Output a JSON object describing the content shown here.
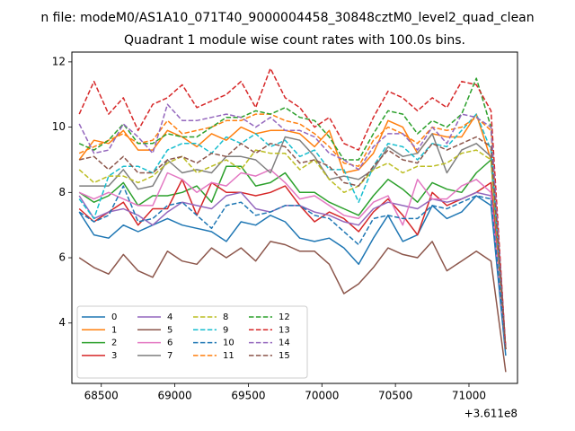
{
  "figure": {
    "suptitle": "n file: modeM0/AS1A10_071T40_9000004458_30848cztM0_level2_quad_clean",
    "title": "Quadrant 1 module wise count rates with 100.0s bins.",
    "offset_text": "+3.611e8"
  },
  "chart_data": {
    "type": "line",
    "title": "Quadrant 1 module wise count rates with 100.0s bins.",
    "xlabel": "",
    "ylabel": "",
    "x_offset": 361100000,
    "xlim": [
      68300,
      71330
    ],
    "ylim": [
      2.15,
      12.3
    ],
    "xticks": [
      68500,
      69000,
      69500,
      70000,
      70500,
      71000
    ],
    "yticks": [
      4,
      6,
      8,
      10,
      12
    ],
    "grid": false,
    "legend_position": "lower-left",
    "legend_columns": 4,
    "x": [
      68350,
      68450,
      68550,
      68650,
      68750,
      68850,
      68950,
      69050,
      69150,
      69250,
      69350,
      69450,
      69550,
      69650,
      69750,
      69850,
      69950,
      70050,
      70150,
      70250,
      70350,
      70450,
      70550,
      70650,
      70750,
      70850,
      70950,
      71050,
      71150,
      71250
    ],
    "series": [
      {
        "name": "0",
        "color": "#1f77b4",
        "dash": "solid",
        "values": [
          7.4,
          6.7,
          6.6,
          7.0,
          6.8,
          7.0,
          7.2,
          7.0,
          6.9,
          6.8,
          6.5,
          7.1,
          7.0,
          7.3,
          7.1,
          6.6,
          6.5,
          6.6,
          6.3,
          5.8,
          6.6,
          7.3,
          6.5,
          6.7,
          7.6,
          7.2,
          7.4,
          7.9,
          7.6,
          3.0
        ]
      },
      {
        "name": "1",
        "color": "#ff7f0e",
        "dash": "solid",
        "values": [
          9.0,
          9.6,
          9.5,
          9.9,
          9.3,
          9.3,
          9.9,
          9.7,
          9.4,
          9.8,
          9.6,
          10.0,
          9.8,
          9.9,
          9.9,
          9.8,
          9.4,
          9.9,
          8.6,
          8.7,
          9.2,
          10.2,
          10.0,
          9.2,
          9.8,
          9.7,
          9.7,
          10.4,
          9.0,
          3.2
        ]
      },
      {
        "name": "2",
        "color": "#2ca02c",
        "dash": "solid",
        "values": [
          8.0,
          7.7,
          7.9,
          8.3,
          7.6,
          7.9,
          7.9,
          8.0,
          8.2,
          7.7,
          8.8,
          8.8,
          8.2,
          8.3,
          8.6,
          8.0,
          8.0,
          7.7,
          7.5,
          7.3,
          7.9,
          8.4,
          8.1,
          7.7,
          8.3,
          8.1,
          8.0,
          8.6,
          9.0,
          3.2
        ]
      },
      {
        "name": "3",
        "color": "#d62728",
        "dash": "solid",
        "values": [
          7.5,
          7.1,
          7.4,
          7.7,
          7.0,
          7.5,
          7.5,
          8.4,
          7.3,
          8.3,
          8.0,
          8.0,
          7.9,
          8.0,
          8.2,
          7.6,
          7.1,
          7.4,
          7.2,
          6.8,
          7.4,
          7.8,
          7.3,
          6.7,
          8.0,
          7.6,
          7.8,
          8.0,
          8.3,
          3.2
        ]
      },
      {
        "name": "4",
        "color": "#9467bd",
        "dash": "solid",
        "values": [
          7.9,
          7.2,
          7.4,
          7.5,
          7.3,
          7.0,
          7.4,
          7.7,
          7.6,
          7.5,
          7.9,
          8.0,
          7.5,
          7.4,
          7.6,
          7.6,
          7.4,
          7.3,
          7.1,
          7.0,
          7.5,
          7.7,
          7.6,
          7.5,
          7.8,
          7.7,
          7.8,
          8.0,
          7.9,
          3.2
        ]
      },
      {
        "name": "5",
        "color": "#8c564b",
        "dash": "solid",
        "values": [
          6.0,
          5.7,
          5.5,
          6.1,
          5.6,
          5.4,
          6.2,
          5.9,
          5.8,
          6.3,
          6.0,
          6.3,
          5.9,
          6.5,
          6.4,
          6.2,
          6.2,
          5.8,
          4.9,
          5.2,
          5.7,
          6.3,
          6.1,
          6.0,
          6.5,
          5.6,
          5.9,
          6.2,
          5.9,
          2.5
        ]
      },
      {
        "name": "6",
        "color": "#e377c2",
        "dash": "solid",
        "values": [
          8.0,
          7.8,
          8.0,
          7.8,
          7.6,
          7.6,
          8.6,
          8.4,
          8.0,
          8.3,
          8.2,
          8.6,
          8.5,
          8.7,
          8.3,
          7.8,
          7.9,
          7.6,
          7.3,
          7.2,
          7.7,
          7.9,
          7.0,
          8.4,
          7.8,
          7.8,
          8.2,
          8.4,
          8.0,
          3.2
        ]
      },
      {
        "name": "7",
        "color": "#7f7f7f",
        "dash": "solid",
        "values": [
          8.2,
          8.2,
          8.2,
          8.7,
          8.1,
          8.2,
          9.0,
          8.6,
          8.7,
          8.6,
          9.1,
          9.1,
          9.0,
          8.6,
          9.7,
          9.6,
          9.1,
          8.4,
          8.5,
          8.4,
          8.7,
          9.4,
          9.1,
          9.2,
          9.8,
          8.6,
          9.3,
          9.5,
          9.1,
          3.2
        ]
      },
      {
        "name": "8",
        "color": "#bcbd22",
        "dash": "dashed",
        "values": [
          8.7,
          8.3,
          8.5,
          8.5,
          8.3,
          8.5,
          8.9,
          9.1,
          8.6,
          8.8,
          9.0,
          8.7,
          9.3,
          9.2,
          9.2,
          8.7,
          9.0,
          8.4,
          8.0,
          8.2,
          8.7,
          8.9,
          8.6,
          8.8,
          8.8,
          8.9,
          9.2,
          9.3,
          9.0,
          3.2
        ]
      },
      {
        "name": "9",
        "color": "#17becf",
        "dash": "dashed",
        "values": [
          7.8,
          7.2,
          8.5,
          8.8,
          8.8,
          8.6,
          9.3,
          9.5,
          9.5,
          9.2,
          9.7,
          9.5,
          9.8,
          9.4,
          9.6,
          9.1,
          9.3,
          8.7,
          8.7,
          7.7,
          8.8,
          9.5,
          9.4,
          9.0,
          9.5,
          9.4,
          9.9,
          10.4,
          9.3,
          3.2
        ]
      },
      {
        "name": "10",
        "color": "#1f77b4",
        "dash": "dashed",
        "values": [
          7.4,
          7.1,
          7.3,
          8.2,
          7.1,
          7.2,
          7.6,
          7.7,
          7.3,
          6.9,
          7.6,
          7.7,
          7.3,
          7.4,
          7.6,
          7.6,
          7.3,
          7.2,
          6.8,
          6.4,
          7.2,
          7.3,
          7.2,
          7.2,
          7.6,
          7.5,
          7.7,
          7.9,
          7.8,
          3.2
        ]
      },
      {
        "name": "11",
        "color": "#ff7f0e",
        "dash": "dashed",
        "values": [
          9.2,
          9.4,
          9.6,
          9.8,
          9.5,
          9.6,
          10.2,
          9.8,
          9.9,
          10.0,
          10.2,
          10.2,
          10.4,
          10.4,
          10.2,
          10.1,
          9.8,
          9.4,
          8.9,
          8.8,
          9.6,
          10.0,
          9.8,
          9.5,
          10.0,
          9.9,
          10.0,
          10.3,
          9.9,
          3.2
        ]
      },
      {
        "name": "12",
        "color": "#2ca02c",
        "dash": "dashed",
        "values": [
          9.5,
          9.3,
          9.6,
          10.1,
          9.5,
          9.5,
          9.8,
          9.7,
          9.7,
          10.0,
          10.3,
          10.3,
          10.5,
          10.4,
          10.6,
          10.3,
          10.2,
          9.7,
          9.0,
          9.0,
          9.8,
          10.5,
          10.4,
          9.8,
          10.2,
          10.0,
          10.4,
          11.5,
          10.0,
          3.2
        ]
      },
      {
        "name": "13",
        "color": "#d62728",
        "dash": "dashed",
        "values": [
          10.4,
          11.4,
          10.4,
          10.9,
          9.9,
          10.7,
          10.9,
          11.3,
          10.6,
          10.8,
          11.0,
          11.4,
          10.6,
          11.8,
          10.9,
          10.6,
          10.0,
          10.3,
          9.5,
          9.3,
          10.3,
          11.1,
          10.9,
          10.5,
          10.9,
          10.6,
          11.4,
          11.3,
          10.5,
          3.2
        ]
      },
      {
        "name": "14",
        "color": "#9467bd",
        "dash": "dashed",
        "values": [
          10.1,
          9.2,
          9.3,
          10.1,
          9.7,
          9.2,
          10.7,
          10.2,
          10.2,
          10.3,
          10.4,
          10.3,
          10.0,
          10.3,
          9.9,
          9.9,
          9.7,
          9.2,
          9.0,
          8.7,
          9.4,
          9.8,
          9.8,
          9.3,
          10.0,
          9.5,
          10.4,
          10.3,
          10.0,
          3.2
        ]
      },
      {
        "name": "15",
        "color": "#8c564b",
        "dash": "dashed",
        "values": [
          9.0,
          9.1,
          8.7,
          9.1,
          8.6,
          8.6,
          9.0,
          9.1,
          8.9,
          9.2,
          9.1,
          9.5,
          9.2,
          9.5,
          9.4,
          8.9,
          9.0,
          8.8,
          8.3,
          8.2,
          8.8,
          9.3,
          9.0,
          8.9,
          9.5,
          9.3,
          9.5,
          9.7,
          9.4,
          3.2
        ]
      }
    ]
  }
}
